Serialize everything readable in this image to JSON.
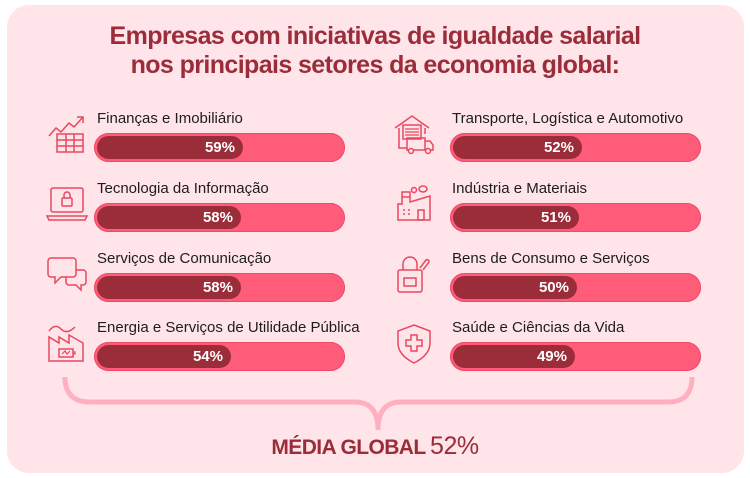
{
  "colors": {
    "background": "#FFE4E9",
    "title": "#9B2D3A",
    "bar_track": "#FF5C7A",
    "bar_fill": "#9B2D3A",
    "icon_stroke": "#E8485F",
    "brace": "#FFAFBF"
  },
  "chart_data": {
    "type": "bar",
    "orientation": "horizontal",
    "title": "Empresas com iniciativas de igualdade salarial nos principais setores da economia global:",
    "title_lines": [
      "Empresas com iniciativas de igualdade salarial",
      "nos principais setores da economia global:"
    ],
    "categories": [
      "Finanças e Imobiliário",
      "Tecnologia da Informação",
      "Serviços de Comunicação",
      "Energia e Serviços de Utilidade Pública",
      "Transporte, Logística e Automotivo",
      "Indústria e Materiais",
      "Bens de Consumo e Serviços",
      "Saúde e Ciências da Vida"
    ],
    "values": [
      59,
      58,
      58,
      54,
      52,
      51,
      50,
      49
    ],
    "value_labels": [
      "59%",
      "58%",
      "58%",
      "54%",
      "52%",
      "51%",
      "50%",
      "49%"
    ],
    "icons": [
      "chart-growth-icon",
      "laptop-lock-icon",
      "chat-bubbles-icon",
      "power-plant-battery-icon",
      "warehouse-truck-icon",
      "factory-icon",
      "shopping-bag-icon",
      "health-shield-icon"
    ],
    "unit": "%",
    "xlim": [
      0,
      100
    ],
    "grid": false,
    "legend": "none",
    "annotation": {
      "label": "MÉDIA GLOBAL",
      "value": 52,
      "value_label": "52%"
    }
  }
}
